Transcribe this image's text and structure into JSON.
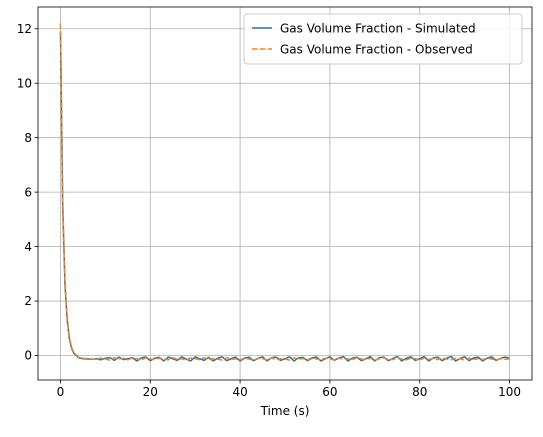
{
  "chart_data": {
    "type": "line",
    "title": "",
    "xlabel": "Time (s)",
    "ylabel": "",
    "xlim": [
      -5,
      105
    ],
    "ylim": [
      -0.9,
      12.8
    ],
    "xticks": [
      0,
      20,
      40,
      60,
      80,
      100
    ],
    "yticks": [
      0,
      2,
      4,
      6,
      8,
      10,
      12
    ],
    "grid": true,
    "legend_position": "top-right",
    "series": [
      {
        "name": "Gas Volume Fraction - Simulated",
        "color": "#1f77b4",
        "style": "solid",
        "x": [
          0,
          0.5,
          1,
          1.5,
          2,
          2.5,
          3,
          4,
          5,
          6,
          7,
          8,
          9,
          10,
          11,
          12,
          13,
          14,
          15,
          16,
          17,
          18,
          19,
          20,
          21,
          22,
          23,
          24,
          25,
          26,
          27,
          28,
          29,
          30,
          31,
          32,
          33,
          34,
          35,
          36,
          37,
          38,
          39,
          40,
          41,
          42,
          43,
          44,
          45,
          46,
          47,
          48,
          49,
          50,
          51,
          52,
          53,
          54,
          55,
          56,
          57,
          58,
          59,
          60,
          61,
          62,
          63,
          64,
          65,
          66,
          67,
          68,
          69,
          70,
          71,
          72,
          73,
          74,
          75,
          76,
          77,
          78,
          79,
          80,
          81,
          82,
          83,
          84,
          85,
          86,
          87,
          88,
          89,
          90,
          91,
          92,
          93,
          94,
          95,
          96,
          97,
          98,
          99,
          100
        ],
        "y": [
          11.9,
          5.5,
          2.6,
          1.3,
          0.6,
          0.25,
          0.08,
          -0.08,
          -0.12,
          -0.13,
          -0.14,
          -0.12,
          -0.16,
          -0.1,
          -0.08,
          -0.18,
          -0.06,
          -0.15,
          -0.12,
          -0.08,
          -0.2,
          -0.09,
          -0.05,
          -0.19,
          -0.1,
          -0.07,
          -0.2,
          -0.06,
          -0.12,
          -0.18,
          -0.05,
          -0.13,
          -0.2,
          -0.05,
          -0.12,
          -0.18,
          -0.07,
          -0.2,
          -0.1,
          -0.05,
          -0.19,
          -0.12,
          -0.06,
          -0.2,
          -0.1,
          -0.06,
          -0.19,
          -0.11,
          -0.05,
          -0.2,
          -0.08,
          -0.06,
          -0.18,
          -0.12,
          -0.05,
          -0.2,
          -0.09,
          -0.07,
          -0.19,
          -0.1,
          -0.05,
          -0.2,
          -0.12,
          -0.05,
          -0.18,
          -0.09,
          -0.04,
          -0.2,
          -0.1,
          -0.06,
          -0.19,
          -0.12,
          -0.04,
          -0.2,
          -0.08,
          -0.06,
          -0.19,
          -0.11,
          -0.04,
          -0.2,
          -0.1,
          -0.05,
          -0.18,
          -0.12,
          -0.04,
          -0.2,
          -0.09,
          -0.06,
          -0.19,
          -0.1,
          -0.04,
          -0.2,
          -0.11,
          -0.05,
          -0.19,
          -0.09,
          -0.06,
          -0.2,
          -0.1,
          -0.05,
          -0.18,
          -0.11,
          -0.06,
          -0.1
        ]
      },
      {
        "name": "Gas Volume Fraction - Observed",
        "color": "#ff7f0e",
        "style": "dashed",
        "x": [
          0,
          0.5,
          1,
          1.5,
          2,
          2.5,
          3,
          4,
          5,
          6,
          7,
          8,
          9,
          10,
          11,
          12,
          13,
          14,
          15,
          16,
          17,
          18,
          19,
          20,
          21,
          22,
          23,
          24,
          25,
          26,
          27,
          28,
          29,
          30,
          31,
          32,
          33,
          34,
          35,
          36,
          37,
          38,
          39,
          40,
          41,
          42,
          43,
          44,
          45,
          46,
          47,
          48,
          49,
          50,
          51,
          52,
          53,
          54,
          55,
          56,
          57,
          58,
          59,
          60,
          61,
          62,
          63,
          64,
          65,
          66,
          67,
          68,
          69,
          70,
          71,
          72,
          73,
          74,
          75,
          76,
          77,
          78,
          79,
          80,
          81,
          82,
          83,
          84,
          85,
          86,
          87,
          88,
          89,
          90,
          91,
          92,
          93,
          94,
          95,
          96,
          97,
          98,
          99,
          100
        ],
        "y": [
          12.2,
          5.8,
          2.8,
          1.4,
          0.65,
          0.3,
          0.1,
          -0.06,
          -0.1,
          -0.12,
          -0.13,
          -0.15,
          -0.09,
          -0.13,
          -0.17,
          -0.08,
          -0.14,
          -0.1,
          -0.16,
          -0.09,
          -0.12,
          -0.17,
          -0.08,
          -0.13,
          -0.15,
          -0.1,
          -0.12,
          -0.16,
          -0.08,
          -0.14,
          -0.12,
          -0.17,
          -0.09,
          -0.12,
          -0.15,
          -0.08,
          -0.16,
          -0.11,
          -0.13,
          -0.17,
          -0.08,
          -0.14,
          -0.12,
          -0.16,
          -0.09,
          -0.13,
          -0.17,
          -0.1,
          -0.12,
          -0.15,
          -0.08,
          -0.16,
          -0.12,
          -0.13,
          -0.17,
          -0.09,
          -0.14,
          -0.11,
          -0.16,
          -0.08,
          -0.13,
          -0.15,
          -0.1,
          -0.12,
          -0.17,
          -0.09,
          -0.14,
          -0.12,
          -0.16,
          -0.08,
          -0.13,
          -0.15,
          -0.1,
          -0.17,
          -0.12,
          -0.09,
          -0.14,
          -0.15,
          -0.08,
          -0.13,
          -0.16,
          -0.1,
          -0.12,
          -0.17,
          -0.09,
          -0.14,
          -0.12,
          -0.15,
          -0.08,
          -0.13,
          -0.16,
          -0.1,
          -0.12,
          -0.17,
          -0.09,
          -0.14,
          -0.12,
          -0.15,
          -0.1,
          -0.13,
          -0.16,
          -0.12,
          -0.14,
          -0.12
        ]
      }
    ]
  }
}
